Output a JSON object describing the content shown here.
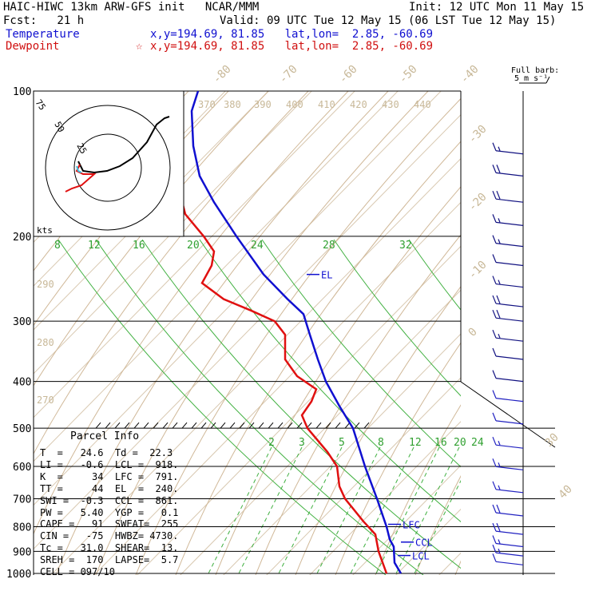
{
  "header": {
    "title": "HAIC-HIWC 13km ARW-GFS init   NCAR/MMM",
    "init": "Init: 12 UTC Mon 11 May 15",
    "fcst": "Fcst:   21 h",
    "valid": "Valid: 09 UTC Tue 12 May 15 (06 LST Tue 12 May 15)",
    "temperature_label": "Temperature",
    "temperature_coords": "x,y=194.69, 81.85   lat,lon=  2.85, -60.69",
    "dewpoint_label": "Dewpoint",
    "dewpoint_coords": "x,y=194.69, 81.85   lat,lon=  2.85, -60.69",
    "dewpoint_marker": "☆",
    "barb_label_1": "Full barb:",
    "barb_label_2": "5 m s⁻¹"
  },
  "parcel": {
    "title": "Parcel Info",
    "rows": [
      "T  =   24.6  Td =  22.3",
      "LI =   -0.6  LCL =  918.",
      "K  =     34  LFC =  791.",
      "TT =     44  EL  =  240.",
      "SWI =  -0.3  CCL =  861.",
      "PW =   5.40  YGP =   0.1",
      "CAPE =   91  SWEAT=  255",
      "CIN =   -75  HWBZ= 4730.",
      "Tc =   31.0  SHEAR=  13.",
      "SREH =  170  LAPSE=  5.7",
      "CELL = 097/10"
    ]
  },
  "colors": {
    "temperature": "#1010d0",
    "dewpoint": "#e01010",
    "isotherm": "#d8c8b0",
    "dry_adiabat": "#d0b898",
    "moist_adiabat": "#40b040",
    "mixing_ratio": "#40b040",
    "hodograph": "#000000"
  },
  "chart_data": {
    "type": "skew-t log-p sounding",
    "y_axis": {
      "scale": "log pressure",
      "ticks": [
        "100",
        "200",
        "300",
        "400",
        "500",
        "600",
        "700",
        "800",
        "900",
        "1000"
      ]
    },
    "theta_e_labels": [
      "370",
      "380",
      "390",
      "400",
      "410",
      "420",
      "430",
      "440"
    ],
    "top_isotherm_labels": [
      "-80",
      "-70",
      "-60",
      "-50",
      "-40"
    ],
    "right_isotherm_labels": [
      "-30",
      "-20",
      "-10",
      "0",
      "30",
      "40"
    ],
    "left_theta_labels": [
      "290",
      "280",
      "270"
    ],
    "mixing_ratio_upper_labels": [
      "8",
      "12",
      "16",
      "20",
      "24",
      "28",
      "32"
    ],
    "mixing_ratio_lower_labels": [
      "2",
      "3",
      "5",
      "8",
      "12",
      "16",
      "20",
      "24"
    ],
    "parcel_levels": [
      {
        "label": "EL",
        "p": 240
      },
      {
        "label": "LFC",
        "p": 791
      },
      {
        "label": "CCL",
        "p": 861
      },
      {
        "label": "LCL",
        "p": 918
      }
    ],
    "temperature_profile": [
      {
        "p": 100,
        "x": 248
      },
      {
        "p": 110,
        "x": 240
      },
      {
        "p": 130,
        "x": 242
      },
      {
        "p": 150,
        "x": 250
      },
      {
        "p": 170,
        "x": 268
      },
      {
        "p": 200,
        "x": 296
      },
      {
        "p": 240,
        "x": 330
      },
      {
        "p": 270,
        "x": 360
      },
      {
        "p": 290,
        "x": 380
      },
      {
        "p": 320,
        "x": 388
      },
      {
        "p": 360,
        "x": 398
      },
      {
        "p": 400,
        "x": 408
      },
      {
        "p": 450,
        "x": 425
      },
      {
        "p": 500,
        "x": 442
      },
      {
        "p": 600,
        "x": 457
      },
      {
        "p": 700,
        "x": 472
      },
      {
        "p": 800,
        "x": 484
      },
      {
        "p": 850,
        "x": 488
      },
      {
        "p": 880,
        "x": 493
      },
      {
        "p": 950,
        "x": 494
      },
      {
        "p": 1000,
        "x": 502
      }
    ],
    "dewpoint_profile": [
      {
        "p": 100,
        "x": 228
      },
      {
        "p": 120,
        "x": 212
      },
      {
        "p": 150,
        "x": 220
      },
      {
        "p": 180,
        "x": 232
      },
      {
        "p": 200,
        "x": 255
      },
      {
        "p": 215,
        "x": 268
      },
      {
        "p": 230,
        "x": 265
      },
      {
        "p": 250,
        "x": 253
      },
      {
        "p": 270,
        "x": 280
      },
      {
        "p": 285,
        "x": 314
      },
      {
        "p": 300,
        "x": 344
      },
      {
        "p": 320,
        "x": 357
      },
      {
        "p": 360,
        "x": 357
      },
      {
        "p": 390,
        "x": 372
      },
      {
        "p": 415,
        "x": 396
      },
      {
        "p": 440,
        "x": 390
      },
      {
        "p": 470,
        "x": 378
      },
      {
        "p": 500,
        "x": 385
      },
      {
        "p": 560,
        "x": 410
      },
      {
        "p": 600,
        "x": 422
      },
      {
        "p": 660,
        "x": 425
      },
      {
        "p": 700,
        "x": 432
      },
      {
        "p": 780,
        "x": 455
      },
      {
        "p": 830,
        "x": 470
      },
      {
        "p": 900,
        "x": 474
      },
      {
        "p": 1000,
        "x": 484
      }
    ],
    "hodograph": {
      "ring_labels": [
        "75",
        "50",
        "25"
      ],
      "unit_label": "kts"
    },
    "wind_barbs": [
      {
        "p": 135,
        "dir": 90,
        "kts": 15
      },
      {
        "p": 150,
        "dir": 90,
        "kts": 20
      },
      {
        "p": 170,
        "dir": 90,
        "kts": 20
      },
      {
        "p": 190,
        "dir": 90,
        "kts": 15
      },
      {
        "p": 210,
        "dir": 90,
        "kts": 15
      },
      {
        "p": 230,
        "dir": 90,
        "kts": 10
      },
      {
        "p": 255,
        "dir": 85,
        "kts": 15
      },
      {
        "p": 280,
        "dir": 80,
        "kts": 20
      },
      {
        "p": 300,
        "dir": 80,
        "kts": 20
      },
      {
        "p": 330,
        "dir": 75,
        "kts": 15
      },
      {
        "p": 360,
        "dir": 80,
        "kts": 10
      },
      {
        "p": 400,
        "dir": 90,
        "kts": 10
      },
      {
        "p": 440,
        "dir": 110,
        "kts": 10
      },
      {
        "p": 490,
        "dir": 120,
        "kts": 10
      },
      {
        "p": 550,
        "dir": 110,
        "kts": 15
      },
      {
        "p": 610,
        "dir": 100,
        "kts": 15
      },
      {
        "p": 680,
        "dir": 95,
        "kts": 15
      },
      {
        "p": 760,
        "dir": 90,
        "kts": 20
      },
      {
        "p": 830,
        "dir": 90,
        "kts": 20
      },
      {
        "p": 880,
        "dir": 90,
        "kts": 15
      },
      {
        "p": 920,
        "dir": 95,
        "kts": 15
      },
      {
        "p": 960,
        "dir": 100,
        "kts": 10
      }
    ]
  }
}
